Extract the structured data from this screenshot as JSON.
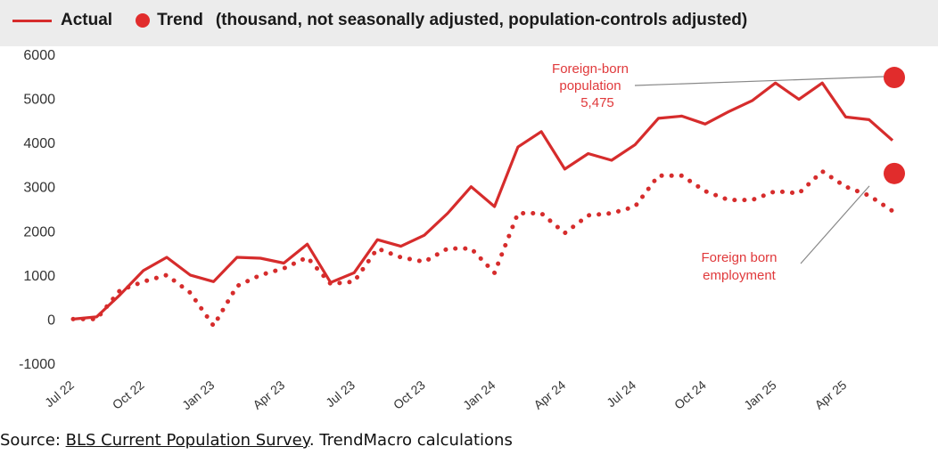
{
  "legend": {
    "actual": "Actual",
    "trend": "Trend",
    "note": "(thousand, not seasonally adjusted, population-controls adjusted)"
  },
  "colors": {
    "actual": "#d62c2c",
    "trend": "#e12c2c",
    "annotation": "#e0393b",
    "axis": "#333333"
  },
  "source": {
    "prefix": "Source: ",
    "link": "BLS Current Population Survey",
    "suffix": ". TrendMacro calculations"
  },
  "chart_data": {
    "type": "line",
    "title": "",
    "xlabel": "",
    "ylabel": "",
    "ylim": [
      -1000,
      6000
    ],
    "yticks": [
      6000,
      5000,
      4000,
      3000,
      2000,
      1000,
      0,
      -1000
    ],
    "x_tick_labels": [
      "Jul 22",
      "Oct 22",
      "Jan 23",
      "Apr 23",
      "Jul 23",
      "Oct 23",
      "Jan 24",
      "Apr 24",
      "Jul 24",
      "Oct 24",
      "Jan 25",
      "Apr 25"
    ],
    "months": 36,
    "series": [
      {
        "name": "Foreign-born population",
        "style": "solid",
        "values": [
          0,
          50,
          550,
          1100,
          1400,
          1000,
          850,
          1400,
          1380,
          1270,
          1700,
          830,
          1050,
          1800,
          1650,
          1900,
          2400,
          3000,
          2550,
          3900,
          4250,
          3400,
          3750,
          3600,
          3950,
          4550,
          4600,
          4420,
          4700,
          4950,
          5350,
          4980,
          5350,
          4580,
          4520,
          4050
        ]
      },
      {
        "name": "Foreign born employment",
        "style": "dotted",
        "values": [
          0,
          0,
          650,
          850,
          1000,
          600,
          -150,
          750,
          1000,
          1150,
          1400,
          800,
          850,
          1600,
          1400,
          1300,
          1600,
          1600,
          1050,
          2400,
          2400,
          1950,
          2350,
          2400,
          2550,
          3250,
          3250,
          2900,
          2700,
          2700,
          2900,
          2850,
          3350,
          3000,
          2800,
          2450
        ]
      }
    ],
    "trend_points": [
      {
        "name": "Foreign-born population",
        "value": 5475
      },
      {
        "name": "Foreign born employment",
        "value": 3300
      }
    ],
    "annotations": [
      {
        "lines": [
          "Foreign-born",
          "population",
          "5,475"
        ]
      },
      {
        "lines": [
          "Foreign born",
          "employment"
        ]
      }
    ]
  }
}
